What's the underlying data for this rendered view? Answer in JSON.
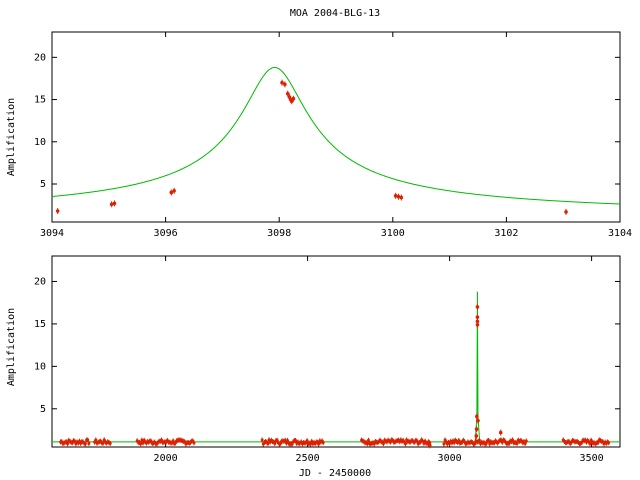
{
  "title": "MOA 2004-BLG-13",
  "colors": {
    "model": "#00bb00",
    "data": "#dd2200",
    "axes": "#000000"
  },
  "chart_data": [
    {
      "type": "scatter",
      "panel": "top",
      "xlabel": "",
      "ylabel": "Amplification",
      "xlim": [
        3094,
        3104
      ],
      "ylim": [
        0.5,
        23
      ],
      "xticks": [
        3094,
        3096,
        3098,
        3100,
        3102,
        3104
      ],
      "yticks": [
        5,
        10,
        15,
        20
      ],
      "model": {
        "t0": 3097.92,
        "peak": 18.8,
        "base": 1.0,
        "tE": 1.75
      },
      "points": [
        [
          3094.1,
          1.8
        ],
        [
          3095.05,
          2.6
        ],
        [
          3095.1,
          2.7
        ],
        [
          3096.1,
          4.0
        ],
        [
          3096.15,
          4.2
        ],
        [
          3098.05,
          17.0
        ],
        [
          3098.1,
          16.8
        ],
        [
          3098.15,
          15.7
        ],
        [
          3098.18,
          15.3
        ],
        [
          3098.2,
          15.0
        ],
        [
          3098.22,
          14.8
        ],
        [
          3098.25,
          15.1
        ],
        [
          3100.05,
          3.6
        ],
        [
          3100.1,
          3.5
        ],
        [
          3100.15,
          3.4
        ],
        [
          3103.05,
          1.7
        ]
      ]
    },
    {
      "type": "scatter",
      "panel": "bottom",
      "xlabel": "JD - 2450000",
      "ylabel": "Amplification",
      "xlim": [
        1600,
        3600
      ],
      "ylim": [
        0.5,
        23
      ],
      "xticks": [
        2000,
        2500,
        3000,
        3500
      ],
      "yticks": [
        5,
        10,
        15,
        20
      ],
      "baseline": 1.1,
      "seasons": [
        [
          1630,
          1730
        ],
        [
          1750,
          1805
        ],
        [
          1900,
          2100
        ],
        [
          2340,
          2555
        ],
        [
          2690,
          2930
        ],
        [
          2980,
          3270
        ],
        [
          3400,
          3560
        ]
      ],
      "spikes": [
        [
          3098,
          17.0
        ],
        [
          3098,
          15.8
        ],
        [
          3098,
          15.3
        ],
        [
          3098,
          14.9
        ],
        [
          3096,
          4.1
        ],
        [
          3100,
          3.6
        ],
        [
          3095,
          2.6
        ],
        [
          3094,
          1.8
        ],
        [
          3180,
          2.2
        ],
        [
          2930,
          0.7
        ]
      ]
    }
  ]
}
